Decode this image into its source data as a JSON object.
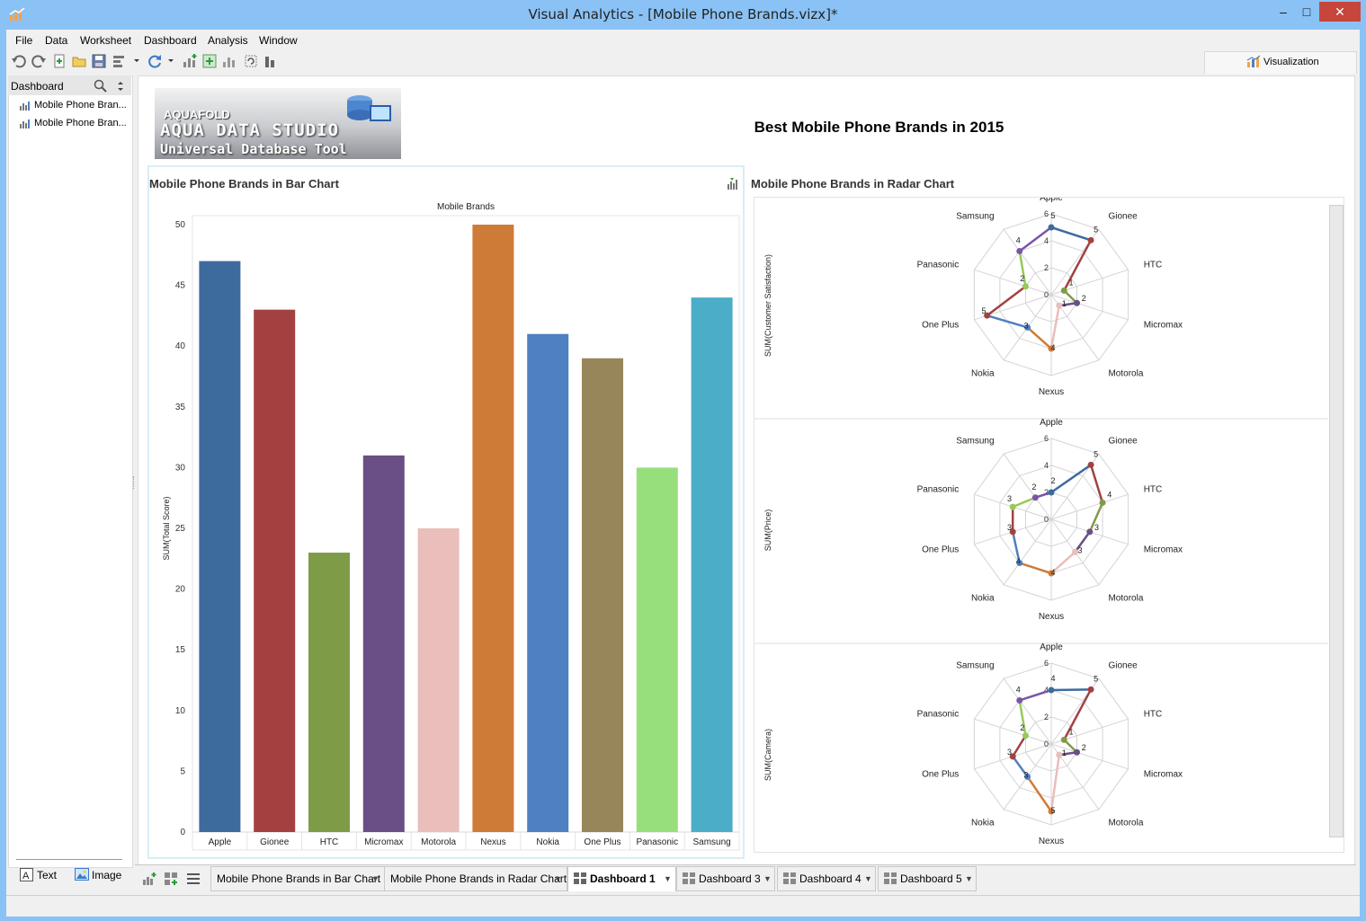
{
  "window": {
    "title": "Visual Analytics - [Mobile Phone Brands.vizx]*",
    "controls": {
      "minimize": "–",
      "maximize": "□",
      "close": "✕"
    }
  },
  "menu": [
    "File",
    "Data",
    "Worksheet",
    "Dashboard",
    "Analysis",
    "Window"
  ],
  "toolbar": {
    "icons": [
      "undo-icon",
      "redo-icon",
      "new-icon",
      "open-icon",
      "save-icon",
      "format-icon",
      "refresh-icon",
      "add-chart-icon",
      "add-chart-plus-icon",
      "chart-icon",
      "reset-icon",
      "bar-icon"
    ],
    "visualization_label": "Visualization"
  },
  "left_panel": {
    "title": "Dashboard",
    "items": [
      "Mobile Phone Bran...",
      "Mobile Phone Bran..."
    ],
    "tools": {
      "text": "Text",
      "image": "Image"
    }
  },
  "dashboard": {
    "title": "Best Mobile Phone Brands in 2015",
    "logo": {
      "line1": "AQUAFOLD",
      "line2": "AQUA DATA STUDIO",
      "line3": "Universal Database Tool"
    }
  },
  "tabs": [
    {
      "label": "Mobile Phone Brands  in Bar Chart",
      "active": false
    },
    {
      "label": "Mobile Phone Brands in Radar Chart",
      "active": false
    },
    {
      "label": "Dashboard 1",
      "active": true
    },
    {
      "label": "Dashboard 3",
      "active": false
    },
    {
      "label": "Dashboard 4",
      "active": false
    },
    {
      "label": "Dashboard 5",
      "active": false
    }
  ],
  "chart_data": [
    {
      "type": "bar",
      "title": "Mobile Phone Brands  in Bar Chart",
      "xlabel": "Mobile Brands",
      "ylabel": "SUM(Total Score)",
      "ylim": [
        0,
        50
      ],
      "yticks": [
        0,
        5,
        10,
        15,
        20,
        25,
        30,
        35,
        40,
        45,
        50
      ],
      "categories": [
        "Apple",
        "Gionee",
        "HTC",
        "Micromax",
        "Motorola",
        "Nexus",
        "Nokia",
        "One Plus",
        "Panasonic",
        "Samsung"
      ],
      "values": [
        47,
        43,
        23,
        31,
        25,
        50,
        41,
        39,
        30,
        44
      ],
      "colors": [
        "#3e6b9e",
        "#a34141",
        "#7e9c47",
        "#6a4f86",
        "#e9bebb",
        "#cf7b38",
        "#4f80c0",
        "#968659",
        "#97df7c",
        "#4badc8"
      ],
      "grid": false
    },
    {
      "type": "radar",
      "title": "Mobile Phone Brands in Radar Chart",
      "categories": [
        "Apple",
        "Gionee",
        "HTC",
        "Micromax",
        "Motorola",
        "Nexus",
        "Nokia",
        "One Plus",
        "Panasonic",
        "Samsung"
      ],
      "rlim": [
        0,
        6
      ],
      "rticks": [
        0,
        2,
        4,
        6
      ],
      "colors": [
        "#3e6b9e",
        "#a34141",
        "#7e9c47",
        "#6a4f86",
        "#e9bebb",
        "#cf7b38",
        "#4f80c0",
        "#a34141",
        "#97c95a",
        "#7a55a6"
      ],
      "panels": [
        {
          "ylabel": "SUM(Customer Satisfaction)",
          "values": [
            5,
            5,
            1,
            2,
            1,
            4,
            3,
            5,
            2,
            4
          ]
        },
        {
          "ylabel": "SUM(Price)",
          "values": [
            2,
            5,
            4,
            3,
            3,
            4,
            4,
            3,
            3,
            2
          ]
        },
        {
          "ylabel": "SUM(Camera)",
          "values": [
            4,
            5,
            1,
            2,
            1,
            5,
            3,
            3,
            2,
            4
          ]
        }
      ]
    }
  ]
}
